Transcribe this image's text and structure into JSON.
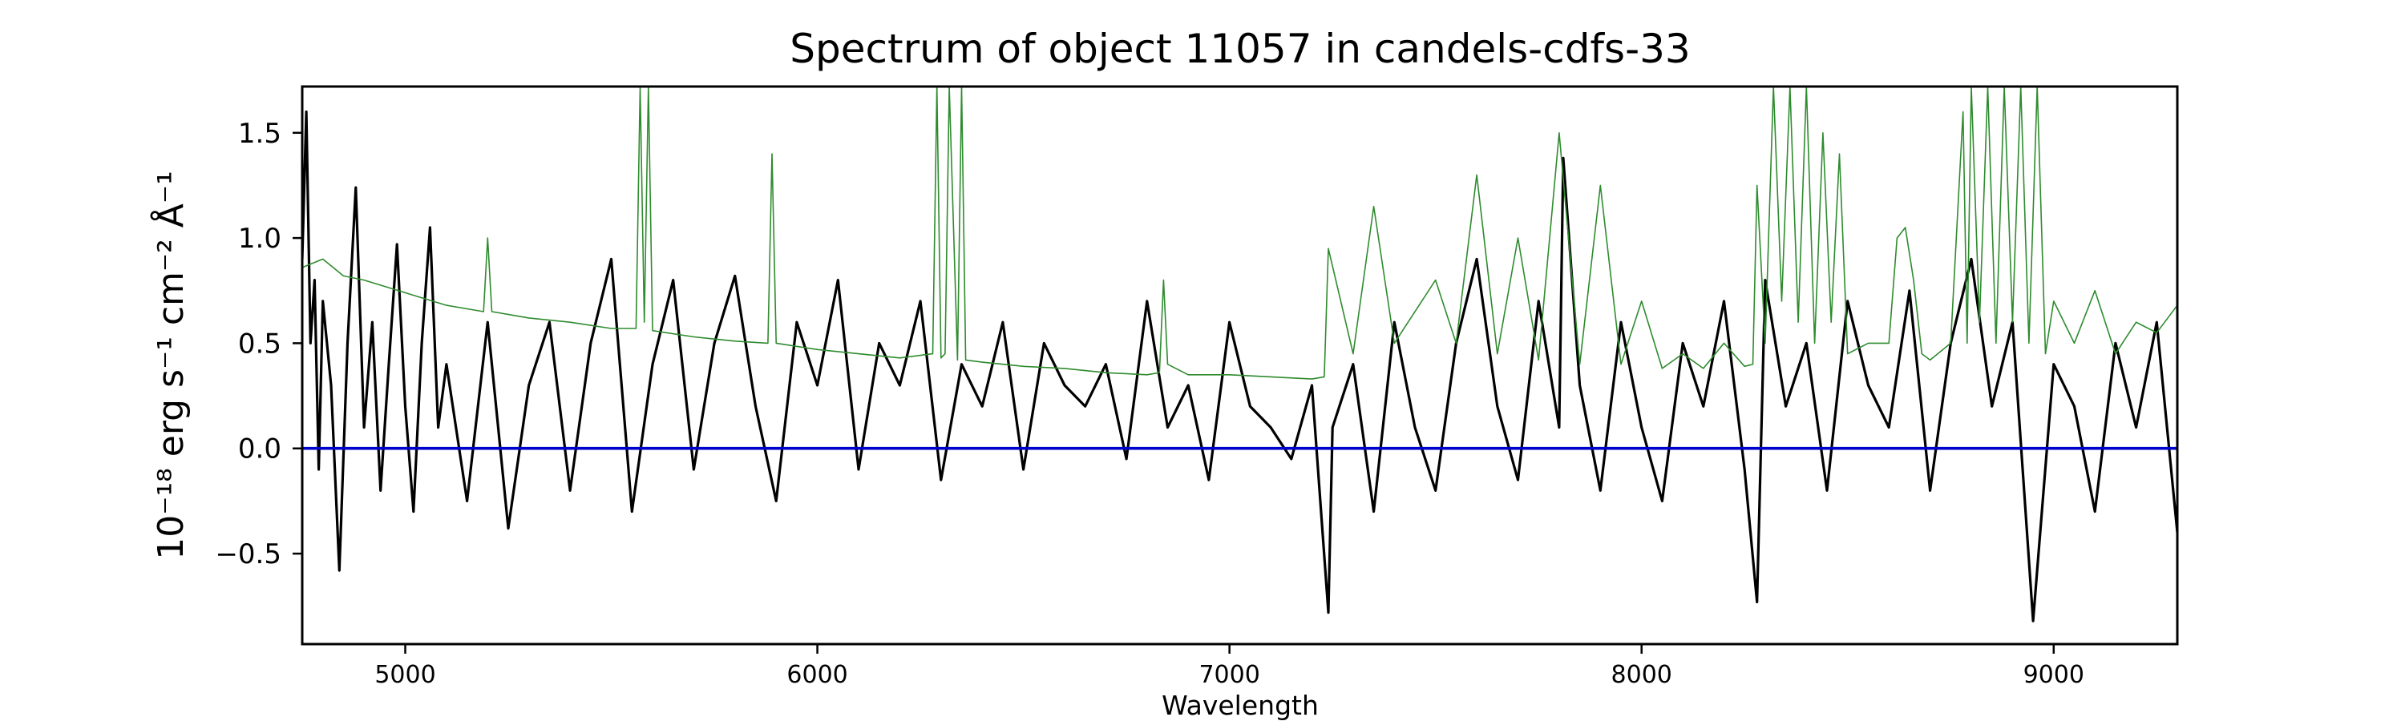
{
  "chart_data": {
    "type": "line",
    "title": "Spectrum of object 11057 in candels-cdfs-33",
    "xlabel": "Wavelength",
    "ylabel": "10⁻¹⁸ erg s⁻¹ cm⁻² Å⁻¹",
    "xlim": [
      4750,
      9300
    ],
    "ylim": [
      -0.93,
      1.72
    ],
    "xticks": [
      5000,
      6000,
      7000,
      8000,
      9000
    ],
    "yticks": [
      -0.5,
      0.0,
      0.5,
      1.0,
      1.5
    ],
    "ytick_labels": [
      "−0.5",
      "0.0",
      "0.5",
      "1.0",
      "1.5"
    ],
    "grid": false,
    "legend": "none",
    "series": [
      {
        "role": "flux",
        "color": "#000000",
        "x": [
          4750,
          4760,
          4770,
          4780,
          4790,
          4800,
          4820,
          4840,
          4860,
          4880,
          4900,
          4920,
          4940,
          4960,
          4980,
          5000,
          5020,
          5040,
          5060,
          5080,
          5100,
          5150,
          5200,
          5250,
          5300,
          5350,
          5400,
          5450,
          5500,
          5550,
          5600,
          5650,
          5700,
          5750,
          5800,
          5850,
          5900,
          5950,
          6000,
          6050,
          6100,
          6150,
          6200,
          6250,
          6300,
          6350,
          6400,
          6450,
          6500,
          6550,
          6600,
          6650,
          6700,
          6750,
          6800,
          6850,
          6900,
          6950,
          7000,
          7050,
          7100,
          7150,
          7200,
          7240,
          7250,
          7300,
          7350,
          7400,
          7450,
          7500,
          7550,
          7600,
          7650,
          7700,
          7750,
          7800,
          7810,
          7850,
          7900,
          7950,
          8000,
          8050,
          8100,
          8150,
          8200,
          8250,
          8280,
          8300,
          8350,
          8400,
          8450,
          8500,
          8550,
          8600,
          8650,
          8700,
          8750,
          8800,
          8850,
          8900,
          8950,
          9000,
          9050,
          9100,
          9150,
          9200,
          9250,
          9300
        ],
        "values": [
          0.9,
          1.6,
          0.5,
          0.8,
          -0.1,
          0.7,
          0.3,
          -0.58,
          0.5,
          1.24,
          0.1,
          0.6,
          -0.2,
          0.4,
          0.97,
          0.2,
          -0.3,
          0.5,
          1.05,
          0.1,
          0.4,
          -0.25,
          0.6,
          -0.38,
          0.3,
          0.6,
          -0.2,
          0.5,
          0.9,
          -0.3,
          0.4,
          0.8,
          -0.1,
          0.5,
          0.82,
          0.2,
          -0.25,
          0.6,
          0.3,
          0.8,
          -0.1,
          0.5,
          0.3,
          0.7,
          -0.15,
          0.4,
          0.2,
          0.6,
          -0.1,
          0.5,
          0.3,
          0.2,
          0.4,
          -0.05,
          0.7,
          0.1,
          0.3,
          -0.15,
          0.6,
          0.2,
          0.1,
          -0.05,
          0.3,
          -0.78,
          0.1,
          0.4,
          -0.3,
          0.6,
          0.1,
          -0.2,
          0.5,
          0.9,
          0.2,
          -0.15,
          0.7,
          0.1,
          1.38,
          0.3,
          -0.2,
          0.6,
          0.1,
          -0.25,
          0.5,
          0.2,
          0.7,
          -0.1,
          -0.73,
          0.8,
          0.2,
          0.5,
          -0.2,
          0.7,
          0.3,
          0.1,
          0.75,
          -0.2,
          0.5,
          0.9,
          0.2,
          0.6,
          -0.82,
          0.4,
          0.2,
          -0.3,
          0.5,
          0.1,
          0.6,
          -0.4
        ]
      },
      {
        "role": "error",
        "color": "#2e8b2e",
        "x": [
          4750,
          4800,
          4850,
          4900,
          5000,
          5100,
          5190,
          5200,
          5210,
          5300,
          5400,
          5500,
          5560,
          5570,
          5580,
          5590,
          5600,
          5700,
          5800,
          5880,
          5890,
          5900,
          6000,
          6100,
          6200,
          6280,
          6290,
          6300,
          6310,
          6320,
          6340,
          6350,
          6360,
          6400,
          6500,
          6600,
          6700,
          6800,
          6830,
          6840,
          6850,
          6900,
          7000,
          7100,
          7200,
          7230,
          7240,
          7300,
          7350,
          7400,
          7500,
          7550,
          7600,
          7650,
          7700,
          7750,
          7800,
          7850,
          7900,
          7950,
          8000,
          8050,
          8100,
          8150,
          8200,
          8250,
          8270,
          8280,
          8300,
          8320,
          8340,
          8360,
          8380,
          8400,
          8420,
          8440,
          8460,
          8480,
          8500,
          8550,
          8600,
          8620,
          8640,
          8660,
          8680,
          8700,
          8750,
          8780,
          8790,
          8800,
          8820,
          8840,
          8860,
          8880,
          8900,
          8920,
          8940,
          8960,
          8980,
          9000,
          9050,
          9100,
          9150,
          9200,
          9250,
          9300
        ],
        "values": [
          0.86,
          0.9,
          0.82,
          0.8,
          0.74,
          0.68,
          0.65,
          1.0,
          0.65,
          0.62,
          0.6,
          0.57,
          0.57,
          1.72,
          0.6,
          1.72,
          0.56,
          0.53,
          0.51,
          0.5,
          1.4,
          0.5,
          0.47,
          0.45,
          0.43,
          0.45,
          1.72,
          0.43,
          0.45,
          1.72,
          0.42,
          1.72,
          0.42,
          0.41,
          0.39,
          0.38,
          0.36,
          0.35,
          0.36,
          0.8,
          0.4,
          0.35,
          0.35,
          0.34,
          0.33,
          0.34,
          0.95,
          0.45,
          1.15,
          0.5,
          0.8,
          0.5,
          1.3,
          0.45,
          1.0,
          0.42,
          1.5,
          0.4,
          1.25,
          0.4,
          0.7,
          0.38,
          0.45,
          0.38,
          0.5,
          0.39,
          0.4,
          1.25,
          0.5,
          1.72,
          0.7,
          1.72,
          0.6,
          1.72,
          0.5,
          1.5,
          0.6,
          1.4,
          0.45,
          0.5,
          0.5,
          1.0,
          1.05,
          0.8,
          0.45,
          0.42,
          0.5,
          1.6,
          0.5,
          1.72,
          0.6,
          1.72,
          0.5,
          1.72,
          0.6,
          1.72,
          0.5,
          1.72,
          0.45,
          0.7,
          0.5,
          0.75,
          0.45,
          0.6,
          0.55,
          0.68
        ]
      },
      {
        "role": "zero",
        "color": "#0000cc",
        "x": [
          4750,
          9300
        ],
        "values": [
          0.0,
          0.0
        ]
      }
    ]
  }
}
